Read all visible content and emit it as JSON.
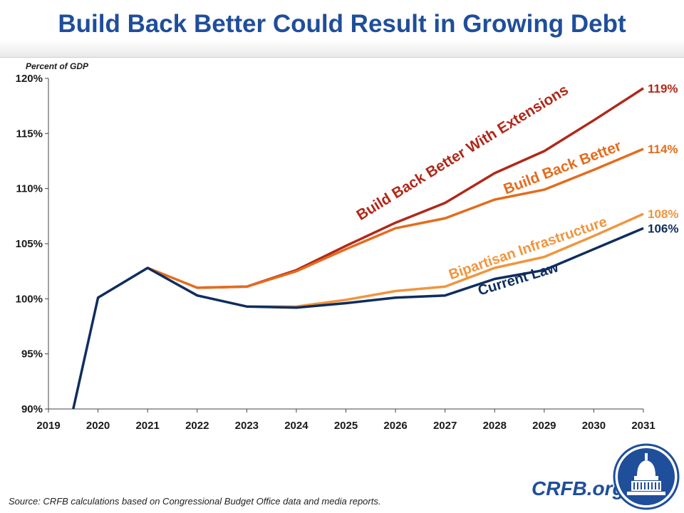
{
  "header": {
    "title": "Build Back Better Could Result in Growing Debt"
  },
  "footer": {
    "source": "Source: CRFB calculations based on Congressional Budget Office data and media reports.",
    "brand": "CRFB.org"
  },
  "colors": {
    "title": "#1f4e9a",
    "current_law": "#0f2d5f",
    "bipartisan": "#f0953e",
    "bbb": "#e46c1c",
    "bbb_ext": "#b0281a",
    "brand": "#1f4e9a"
  },
  "chart_data": {
    "type": "line",
    "title": "Build Back Better Could Result in Growing Debt",
    "ylabel": "Percent of GDP",
    "xlabel": "",
    "xlim": [
      2019,
      2031
    ],
    "ylim": [
      90,
      120
    ],
    "x_ticks": [
      "2019",
      "2020",
      "2021",
      "2022",
      "2023",
      "2024",
      "2025",
      "2026",
      "2027",
      "2028",
      "2029",
      "2030",
      "2031"
    ],
    "y_ticks": [
      "90%",
      "95%",
      "100%",
      "105%",
      "110%",
      "115%",
      "120%"
    ],
    "grid": false,
    "series": [
      {
        "name": "Build Back Better With Extensions",
        "color": "#b0281a",
        "end_label": "119%",
        "x": [
          2022,
          2023,
          2024,
          2025,
          2026,
          2027,
          2028,
          2029,
          2030,
          2031
        ],
        "y": [
          101.0,
          101.1,
          102.6,
          104.8,
          106.9,
          108.7,
          111.4,
          113.4,
          116.2,
          119.1
        ]
      },
      {
        "name": "Build Back Better",
        "color": "#e46c1c",
        "end_label": "114%",
        "x": [
          2021,
          2022,
          2023,
          2024,
          2025,
          2026,
          2027,
          2028,
          2029,
          2030,
          2031
        ],
        "y": [
          102.8,
          101.0,
          101.1,
          102.5,
          104.5,
          106.4,
          107.3,
          109.0,
          109.9,
          111.7,
          113.6
        ]
      },
      {
        "name": "Bipartisan Infrastructure",
        "color": "#f0953e",
        "end_label": "108%",
        "x": [
          2023,
          2024,
          2025,
          2026,
          2027,
          2028,
          2029,
          2030,
          2031
        ],
        "y": [
          99.3,
          99.3,
          99.9,
          100.7,
          101.1,
          102.8,
          103.8,
          105.7,
          107.7
        ]
      },
      {
        "name": "Current Law",
        "color": "#0f2d5f",
        "end_label": "106%",
        "x": [
          2019.5,
          2020,
          2021,
          2022,
          2023,
          2024,
          2025,
          2026,
          2027,
          2028,
          2029,
          2030,
          2031
        ],
        "y": [
          90.0,
          100.1,
          102.8,
          100.3,
          99.3,
          99.2,
          99.6,
          100.1,
          100.3,
          101.8,
          102.6,
          104.5,
          106.4
        ]
      }
    ]
  }
}
